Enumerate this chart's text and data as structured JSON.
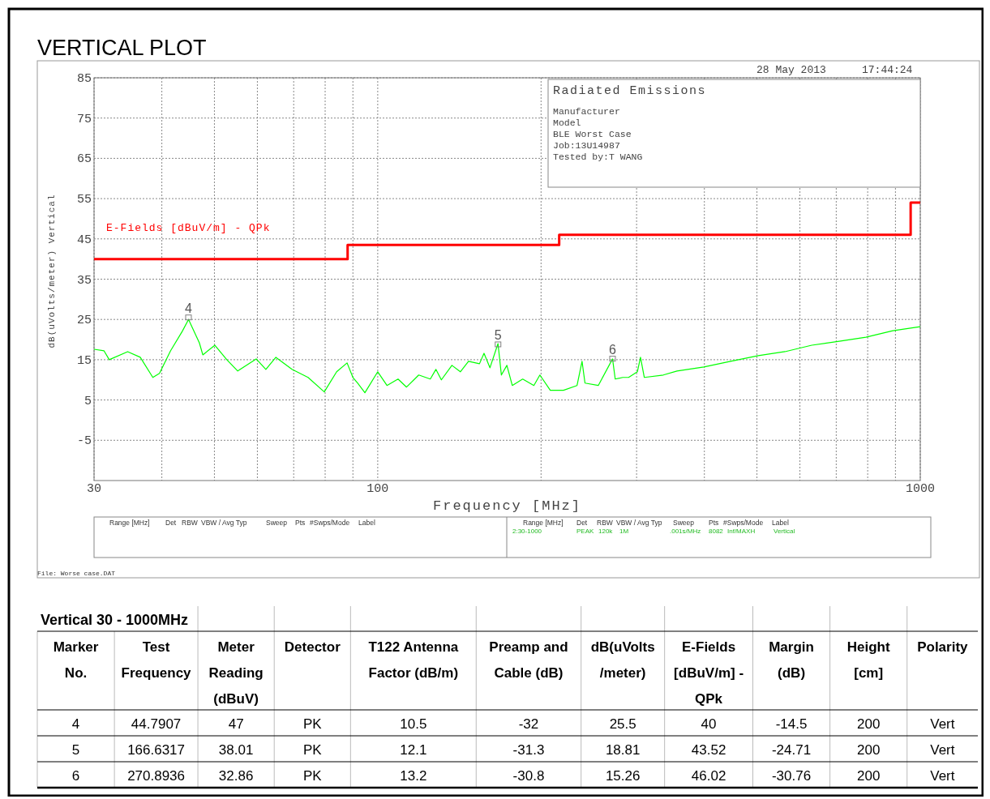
{
  "chart_data": {
    "type": "line",
    "title": "VERTICAL PLOT",
    "xlabel": "Frequency [MHz]",
    "ylabel": "dB(uVolts/meter) Vertical",
    "log": "x",
    "xlim": [
      30,
      1000
    ],
    "ylim": [
      -15,
      85
    ],
    "xticks": [
      30,
      {
        "value": 40,
        "label": null
      },
      {
        "value": 50,
        "label": null
      },
      {
        "value": 60,
        "label": null
      },
      {
        "value": 70,
        "label": null
      },
      {
        "value": 80,
        "label": null
      },
      {
        "value": 90,
        "label": null
      },
      100,
      {
        "value": 200,
        "label": null
      },
      {
        "value": 300,
        "label": null
      },
      {
        "value": 400,
        "label": null
      },
      {
        "value": 500,
        "label": null
      },
      {
        "value": 600,
        "label": null
      },
      {
        "value": 700,
        "label": null
      },
      {
        "value": 800,
        "label": null
      },
      {
        "value": 900,
        "label": null
      },
      1000
    ],
    "yticks": [
      -5,
      5,
      15,
      25,
      35,
      45,
      55,
      65,
      75,
      85
    ],
    "grid": true,
    "legend": false,
    "series": [
      {
        "color": "#00ff00",
        "x": [
          30,
          31.3,
          32,
          34.6,
          36.5,
          38.5,
          39.6,
          41.5,
          43.6,
          44.8,
          46.9,
          47.6,
          50.1,
          52.7,
          55.2,
          59.7,
          62.2,
          64.9,
          69.5,
          74.4,
          79.7,
          84,
          87.8,
          90,
          91.8,
          94.7,
          100,
          104,
          109,
          113,
          119,
          125,
          128,
          131,
          137,
          142,
          147,
          154,
          157,
          161,
          166.6,
          169,
          173,
          177,
          185,
          194,
          199,
          208,
          220,
          233,
          238,
          241,
          255,
          270.9,
          274,
          283,
          290,
          301,
          305,
          310,
          336,
          356,
          399,
          447,
          503,
          563,
          631,
          709,
          794,
          890,
          1000
        ],
        "values": [
          17.6,
          17.2,
          15,
          17,
          15.6,
          10.6,
          11.6,
          17.2,
          22,
          25,
          19.2,
          16.2,
          18.6,
          15,
          12.2,
          15.2,
          12.6,
          15.6,
          12.6,
          10.6,
          7,
          12,
          14.2,
          10.6,
          9.2,
          6.8,
          12,
          8.6,
          10.2,
          8.2,
          11.2,
          10.2,
          12.6,
          10,
          13.6,
          12,
          14.6,
          14,
          16.6,
          13,
          19,
          11.2,
          13.6,
          8.6,
          10.2,
          8.6,
          11.2,
          7.4,
          7.4,
          8.6,
          14.6,
          9.2,
          8.6,
          15.2,
          10.2,
          10.6,
          10.6,
          12,
          15.6,
          10.6,
          11.2,
          12.2,
          13.2,
          14.6,
          16,
          17,
          18.6,
          19.6,
          20.6,
          22.2,
          23.2
        ]
      },
      {
        "type": "step",
        "name": "E-Fields [dBuV/m] - QPk",
        "color": "#ff0000",
        "x": [
          30,
          88,
          216,
          960,
          1000
        ],
        "values": [
          40,
          43.5,
          46,
          54,
          54
        ]
      },
      {
        "type": "scatter",
        "color": "#808080",
        "marker": "square",
        "x": [
          44.7907,
          166.6317,
          270.8936
        ],
        "values": [
          25.5,
          18.81,
          15.26
        ]
      }
    ],
    "annotations": [
      {
        "text": "4",
        "x": 44.7907,
        "y": 25.5
      },
      {
        "text": "5",
        "x": 166.6317,
        "y": 18.81
      },
      {
        "text": "6",
        "x": 270.8936,
        "y": 15.26
      },
      "28 May 2013",
      "17:44:24",
      "Radiated Emissions",
      "Manufacturer",
      "Model",
      "BLE Worst Case",
      "Job:13U14987",
      "Tested by:T WANG",
      "Range [MHz]",
      "Det",
      "RBW",
      "VBW / Avg Typ",
      "Sweep",
      "Pts",
      "#Swps/Mode",
      "Label",
      "Range [MHz]",
      "Det",
      "RBW",
      "VBW / Avg Typ",
      "Sweep",
      "Pts",
      "#Swps/Mode",
      "Label",
      "2:30-1000",
      "PEAK",
      "120k",
      "1M",
      ".001s/MHz",
      "8082",
      "Inf/MAXH",
      "Vertical",
      "File: Worse case.DAT",
      "Vertical 30 - 1000MHz",
      "Marker No.",
      "Test Frequency",
      "Meter Reading (dBuV)",
      "Detector",
      "T122 Antenna Factor (dB/m)",
      "Preamp and Cable (dB)",
      "dB(uVolts /meter)",
      "E-Fields [dBuV/m] - QPk",
      "Margin (dB)",
      "Height [cm]",
      "Polarity",
      "4",
      "44.7907",
      "47",
      "PK",
      "10.5",
      "-32",
      "25.5",
      "40",
      "-14.5",
      "200",
      "Vert",
      "5",
      "166.6317",
      "38.01",
      "PK",
      "12.1",
      "-31.3",
      "18.81",
      "43.52",
      "-24.71",
      "200",
      "Vert",
      "6",
      "270.8936",
      "32.86",
      "PK",
      "13.2",
      "-30.8",
      "15.26",
      "46.02",
      "-30.76",
      "200",
      "Vert"
    ]
  }
}
